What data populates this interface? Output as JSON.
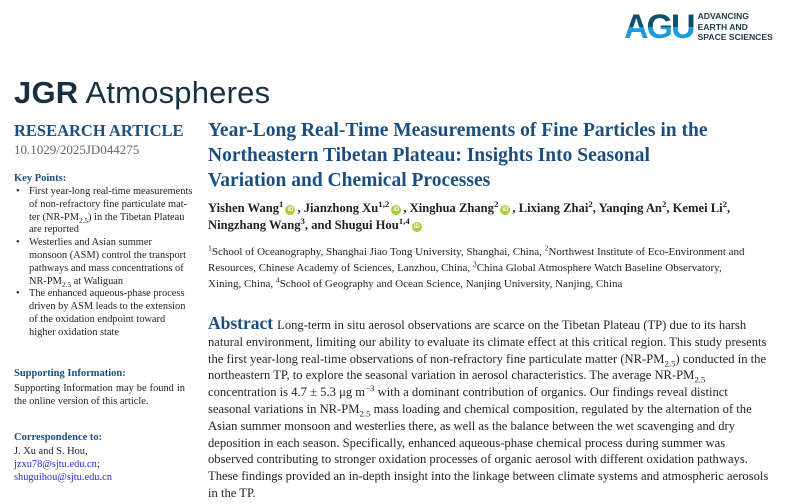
{
  "logo": {
    "mark": "AGU",
    "tagline": [
      "ADVANCING",
      "EARTH AND",
      "SPACE SCIENCES"
    ]
  },
  "journal": {
    "bold": "JGR",
    "rest": " Atmospheres"
  },
  "sidebar": {
    "article_type": "RESEARCH ARTICLE",
    "doi": "10.1029/2025JD044275",
    "key_points_heading": "Key Points:",
    "key_points": [
      [
        [
          "First year-long real-time measurements"
        ],
        [
          "of non-refractory fine particulate mat-"
        ],
        [
          "ter (NR-PM",
          {
            "sub": "2.5"
          },
          ") in the Tibetan Plateau"
        ],
        [
          "are reported"
        ]
      ],
      [
        [
          "Westerlies and Asian summer"
        ],
        [
          "monsoon (ASM) control the transport"
        ],
        [
          "pathways and mass concentrations of"
        ],
        [
          "NR-PM",
          {
            "sub": "2.5"
          },
          " at Waliguan"
        ]
      ],
      [
        [
          "The enhanced aqueous-phase process"
        ],
        [
          "driven by ASM leads to the extension"
        ],
        [
          "of the oxidation endpoint toward"
        ],
        [
          "higher oxidation state"
        ]
      ]
    ],
    "supporting_heading": "Supporting Information:",
    "supporting_text": "Supporting Information may be found in the online version of this article.",
    "correspondence_heading": "Correspondence to:",
    "correspondence_names": "J. Xu and S. Hou,",
    "emails": [
      "jzxu78@sjtu.edu.cn",
      "shuguihou@sjtu.edu.cn"
    ]
  },
  "title": [
    "Year-Long Real-Time Measurements of Fine Particles in the",
    "Northeastern Tibetan Plateau: Insights Into Seasonal",
    "Variation and Chemical Processes"
  ],
  "authors": [
    [
      [
        "Yishen Wang",
        {
          "sup": "1"
        },
        {
          "orcid": "iD"
        },
        ", Jianzhong Xu",
        {
          "sup": "1,2"
        },
        {
          "orcid": "iD"
        },
        ", Xinghua Zhang",
        {
          "sup": "2"
        },
        {
          "orcid": "iD"
        },
        ", Lixiang Zhai",
        {
          "sup": "2"
        },
        ", Yanqing An",
        {
          "sup": "2"
        },
        ", Kemei Li",
        {
          "sup": "2"
        },
        ","
      ]
    ],
    [
      [
        "Ningzhang Wang",
        {
          "sup": "3"
        },
        ", and Shugui Hou",
        {
          "sup": "1,4"
        },
        {
          "orcid": "iD"
        }
      ]
    ]
  ],
  "affiliations": [
    [
      {
        "sup": "1"
      },
      "School of Oceanography, Shanghai Jiao Tong University, Shanghai, China, ",
      {
        "sup": "2"
      },
      "Northwest Institute of Eco-Environment and"
    ],
    [
      "Resources, Chinese Academy of Sciences, Lanzhou, China, ",
      {
        "sup": "3"
      },
      "China Global Atmosphere Watch Baseline Observatory,"
    ],
    [
      "Xining, China, ",
      {
        "sup": "4"
      },
      "School of Geography and Ocean Science, Nanjing University, Nanjing, China"
    ]
  ],
  "abstract": {
    "heading": "Abstract",
    "lines": [
      [
        "Long-term in situ aerosol observations are scarce on the Tibetan Plateau (TP) due to its harsh"
      ],
      [
        "natural environment, limiting our ability to evaluate its climate effect at this critical region. This study presents"
      ],
      [
        "the first year-long real-time observations of non-refractory fine particulate matter (NR-PM",
        {
          "sub": "2.5"
        },
        ") conducted in the"
      ],
      [
        "northeastern TP, to explore the seasonal variation in aerosol characteristics. The average NR-PM",
        {
          "sub": "2.5"
        }
      ],
      [
        "concentration is 4.7 ± 5.3 μg m",
        {
          "sup": "−3"
        },
        " with a dominant contribution of organics. Our findings reveal distinct"
      ],
      [
        "seasonal variations in NR-PM",
        {
          "sub": "2.5"
        },
        " mass loading and chemical composition, regulated by the alternation of the"
      ],
      [
        "Asian summer monsoon and westerlies there, as well as the balance between the wet scavenging and dry"
      ],
      [
        "deposition in each season. Specifically, enhanced aqueous-phase chemical process during summer was"
      ],
      [
        "observed contributing to stronger oxidation processes of organic aerosol with different oxidation pathways."
      ],
      [
        "These findings provided an in-depth insight into the linkage between climate systems and atmospheric aerosols"
      ],
      [
        "in the TP."
      ]
    ]
  },
  "colors": {
    "heading_blue": "#1a4f80",
    "link": "#2a2ae0",
    "orcid": "#a6ce39"
  }
}
